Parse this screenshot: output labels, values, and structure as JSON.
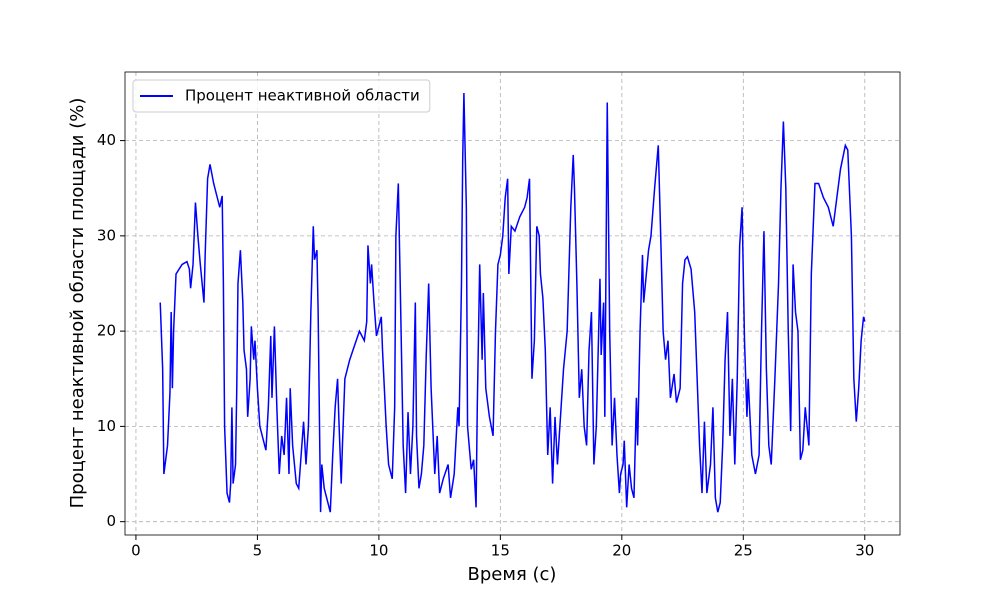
{
  "chart_data": {
    "type": "line",
    "xlabel": "Время (с)",
    "ylabel": "Процент неактивной области площади (%)",
    "xlim": [
      -0.45,
      31.45
    ],
    "ylim": [
      -1.4,
      47.2
    ],
    "xticks": [
      0,
      5,
      10,
      15,
      20,
      25,
      30
    ],
    "yticks": [
      0,
      10,
      20,
      30,
      40
    ],
    "grid": true,
    "legend": "upper left",
    "x": [
      1.0,
      1.1,
      1.15,
      1.3,
      1.4,
      1.45,
      1.5,
      1.55,
      1.65,
      1.9,
      2.1,
      2.2,
      2.25,
      2.35,
      2.45,
      2.55,
      2.65,
      2.8,
      2.85,
      2.95,
      3.05,
      3.2,
      3.35,
      3.45,
      3.55,
      3.6,
      3.65,
      3.75,
      3.85,
      3.9,
      3.95,
      4.0,
      4.1,
      4.15,
      4.2,
      4.3,
      4.4,
      4.45,
      4.55,
      4.6,
      4.7,
      4.75,
      4.85,
      4.9,
      5.0,
      5.1,
      5.3,
      5.35,
      5.45,
      5.55,
      5.6,
      5.7,
      5.8,
      5.9,
      6.0,
      6.1,
      6.2,
      6.3,
      6.35,
      6.45,
      6.6,
      6.7,
      6.8,
      6.9,
      7.0,
      7.1,
      7.2,
      7.3,
      7.35,
      7.45,
      7.5,
      7.6,
      7.65,
      7.75,
      7.9,
      8.0,
      8.1,
      8.2,
      8.3,
      8.35,
      8.45,
      8.5,
      8.6,
      8.8,
      9.0,
      9.2,
      9.4,
      9.5,
      9.55,
      9.65,
      9.7,
      9.8,
      9.9,
      10.1,
      10.15,
      10.3,
      10.4,
      10.55,
      10.65,
      10.7,
      10.8,
      10.9,
      11.0,
      11.1,
      11.2,
      11.3,
      11.4,
      11.5,
      11.55,
      11.65,
      11.75,
      11.85,
      11.95,
      12.05,
      12.15,
      12.3,
      12.4,
      12.5,
      12.65,
      12.85,
      12.95,
      13.1,
      13.25,
      13.3,
      13.4,
      13.45,
      13.5,
      13.6,
      13.65,
      13.8,
      13.9,
      14.0,
      14.05,
      14.15,
      14.25,
      14.3,
      14.4,
      14.55,
      14.7,
      14.8,
      14.9,
      15.0,
      15.1,
      15.2,
      15.3,
      15.35,
      15.45,
      15.6,
      15.8,
      16.0,
      16.1,
      16.2,
      16.3,
      16.4,
      16.5,
      16.6,
      16.65,
      16.75,
      16.85,
      16.95,
      17.05,
      17.15,
      17.25,
      17.35,
      17.45,
      17.6,
      17.75,
      17.9,
      18.0,
      18.05,
      18.15,
      18.25,
      18.35,
      18.45,
      18.55,
      18.65,
      18.75,
      18.85,
      18.95,
      19.1,
      19.15,
      19.25,
      19.3,
      19.4,
      19.5,
      19.6,
      19.7,
      19.8,
      19.9,
      19.95,
      20.05,
      20.1,
      20.2,
      20.3,
      20.4,
      20.5,
      20.6,
      20.65,
      20.75,
      20.85,
      20.9,
      21.1,
      21.2,
      21.35,
      21.5,
      21.6,
      21.7,
      21.8,
      21.9,
      22.0,
      22.15,
      22.25,
      22.4,
      22.5,
      22.6,
      22.7,
      22.85,
      23.0,
      23.1,
      23.2,
      23.3,
      23.4,
      23.5,
      23.65,
      23.75,
      23.85,
      23.95,
      24.05,
      24.15,
      24.25,
      24.35,
      24.45,
      24.55,
      24.65,
      24.75,
      24.85,
      24.95,
      25.05,
      25.15,
      25.2,
      25.35,
      25.5,
      25.65,
      25.75,
      25.85,
      25.95,
      26.05,
      26.15,
      26.3,
      26.45,
      26.55,
      26.65,
      26.75,
      26.85,
      26.95,
      27.05,
      27.15,
      27.25,
      27.35,
      27.45,
      27.55,
      27.7,
      27.8,
      27.95,
      28.1,
      28.3,
      28.5,
      28.7,
      28.85,
      29.0,
      29.2,
      29.3,
      29.45,
      29.55,
      29.65,
      29.75,
      29.85,
      29.95,
      30.0
    ],
    "series": [
      {
        "name": "Процент неактивной области",
        "color": "#0000ff",
        "values": [
          23,
          16,
          5,
          8,
          13.5,
          22,
          14,
          20,
          26,
          27,
          27.3,
          26.5,
          24.5,
          27,
          33.5,
          30,
          27,
          23,
          28,
          36,
          37.5,
          35.5,
          34,
          33,
          34.2,
          25,
          10,
          3,
          2,
          4,
          12,
          4,
          6,
          14,
          25,
          28.5,
          23,
          18,
          16,
          11,
          15,
          20.5,
          17,
          19,
          14,
          10,
          8,
          7.5,
          12,
          19.5,
          13,
          20.5,
          12,
          5,
          9,
          7,
          13,
          5,
          14,
          8,
          4,
          3.5,
          7,
          10.5,
          6,
          10,
          22,
          31,
          27.5,
          28.5,
          22,
          1,
          6,
          3.5,
          2,
          1,
          7,
          12,
          15,
          11,
          4,
          8,
          15,
          17,
          18.5,
          20,
          19,
          21,
          29,
          25,
          27,
          23,
          19.5,
          21.5,
          18,
          10,
          6,
          4.5,
          12,
          30,
          35.5,
          22,
          8,
          3,
          11.5,
          5,
          10,
          23,
          9,
          3.5,
          5,
          8,
          17.5,
          25,
          14,
          5,
          9,
          3,
          4.5,
          6,
          2.5,
          5,
          12,
          10,
          25,
          38,
          45,
          33,
          10,
          5.5,
          6.5,
          1.5,
          12,
          27,
          17,
          24,
          14,
          11,
          9,
          20,
          27,
          28,
          30,
          34,
          36,
          26,
          31,
          30.5,
          32,
          33,
          34,
          36,
          15,
          19,
          31,
          30,
          26,
          23.5,
          18,
          7,
          12,
          4,
          11,
          6,
          10,
          16,
          20,
          33,
          38.5,
          35,
          25,
          13,
          16,
          10,
          8,
          18,
          22,
          6,
          10,
          25.5,
          17.5,
          23,
          11,
          44,
          20,
          8,
          13,
          7,
          3,
          5,
          6,
          8.5,
          1.5,
          6,
          3.5,
          2.5,
          13,
          8,
          20,
          28,
          23,
          28.5,
          30,
          35,
          39.5,
          30,
          20,
          17,
          19,
          13,
          15.5,
          12.5,
          14,
          25,
          27.5,
          27.8,
          26.5,
          22,
          15,
          8,
          3,
          10.5,
          3,
          6,
          12,
          2.5,
          1,
          2,
          8,
          17,
          22,
          9,
          15,
          6,
          15,
          29,
          33,
          19,
          11,
          15,
          7,
          5,
          7,
          20,
          30.5,
          16,
          8,
          6,
          15,
          25,
          35,
          42,
          35,
          20,
          9.5,
          27,
          22,
          20,
          6.5,
          7.5,
          12,
          8,
          26,
          35.5,
          35.5,
          34,
          33,
          31,
          34,
          37,
          39.5,
          39,
          30,
          15,
          10.5,
          14,
          19,
          21.5,
          21
        ]
      }
    ]
  }
}
